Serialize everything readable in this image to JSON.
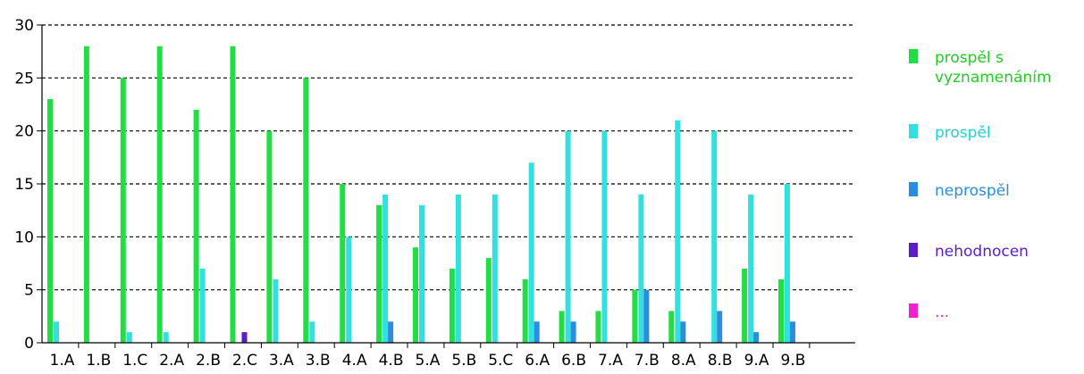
{
  "chart_data": {
    "type": "bar",
    "title": "",
    "xlabel": "",
    "ylabel": "",
    "ylim": [
      0,
      30
    ],
    "yticks": [
      0,
      5,
      10,
      15,
      20,
      25,
      30
    ],
    "grid": "horizontal dashed",
    "legend_position": "right",
    "categories": [
      "1.A",
      "1.B",
      "1.C",
      "2.A",
      "2.B",
      "2.C",
      "3.A",
      "3.B",
      "4.A",
      "4.B",
      "5.A",
      "5.B",
      "5.C",
      "6.A",
      "6.B",
      "7.A",
      "7.B",
      "8.A",
      "8.B",
      "9.A",
      "9.B"
    ],
    "series": [
      {
        "name": "prospěl s vyznamenáním",
        "color": "#22dd44",
        "values": [
          23,
          28,
          25,
          28,
          22,
          28,
          20,
          25,
          15,
          13,
          9,
          7,
          8,
          6,
          3,
          3,
          5,
          3,
          0,
          7,
          6
        ]
      },
      {
        "name": "prospěl",
        "color": "#33e0e0",
        "values": [
          2,
          0,
          1,
          1,
          7,
          0,
          6,
          2,
          10,
          14,
          13,
          14,
          14,
          17,
          20,
          20,
          14,
          21,
          20,
          14,
          15
        ]
      },
      {
        "name": "neprospěl",
        "color": "#2a8ee0",
        "values": [
          0,
          0,
          0,
          0,
          0,
          0,
          0,
          0,
          0,
          2,
          0,
          0,
          0,
          2,
          2,
          0,
          5,
          2,
          3,
          1,
          2
        ]
      },
      {
        "name": "nehodnocen",
        "color": "#5a1ec8",
        "values": [
          0,
          0,
          0,
          0,
          0,
          1,
          0,
          0,
          0,
          0,
          0,
          0,
          0,
          0,
          0,
          0,
          0,
          0,
          0,
          0,
          0
        ]
      },
      {
        "name": "...",
        "color": "#ee22cc",
        "values": [
          0,
          0,
          0,
          0,
          0,
          0,
          0,
          0,
          0,
          0,
          0,
          0,
          0,
          0,
          0,
          0,
          0,
          0,
          0,
          0,
          0
        ]
      }
    ],
    "legend": [
      {
        "label_lines": [
          "prospěl s",
          "vyznamenáním"
        ],
        "color": "#22dd44",
        "text_color": "#22cc22"
      },
      {
        "label_lines": [
          "prospěl"
        ],
        "color": "#33e0e0",
        "text_color": "#22d0d0"
      },
      {
        "label_lines": [
          "neprospěl"
        ],
        "color": "#2a8ee0",
        "text_color": "#2a8ee0"
      },
      {
        "label_lines": [
          "nehodnocen"
        ],
        "color": "#5a1ec8",
        "text_color": "#5a1ec8"
      },
      {
        "label_lines": [
          "..."
        ],
        "color": "#ee22cc",
        "text_color": "#ee22cc"
      }
    ]
  }
}
